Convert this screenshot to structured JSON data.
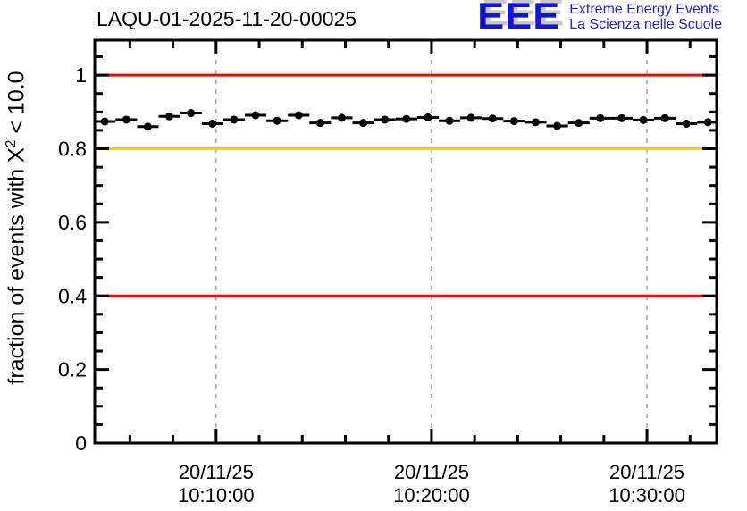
{
  "header": {
    "title": "LAQU-01-2025-11-20-00025"
  },
  "logo": {
    "acronym": "EEE",
    "line1": "Extreme Energy Events",
    "line2": "La Scienza nelle Scuole",
    "text_color": "#2121dd",
    "letters_color": "#1414d6",
    "shadow_color": "#c8c8c8"
  },
  "chart_data": {
    "type": "scatter",
    "title": "LAQU-01-2025-11-20-00025",
    "background": "#ffffff",
    "grid": "vertical-dashed-at-major-ticks",
    "grid_color": "#a6a6a6",
    "ylabel_parts": {
      "before_sup": "fraction of events with X",
      "sup": "2",
      "after_sup": " < 10.0"
    },
    "y_axis": {
      "range": [
        0,
        1.095
      ],
      "major_step": 0.2,
      "minor_step": 0.05,
      "ticks": [
        {
          "value": 0,
          "label": "0"
        },
        {
          "value": 0.2,
          "label": "0.2"
        },
        {
          "value": 0.4,
          "label": "0.4"
        },
        {
          "value": 0.6,
          "label": "0.6"
        },
        {
          "value": 0.8,
          "label": "0.8"
        },
        {
          "value": 1,
          "label": "1"
        }
      ]
    },
    "x_axis": {
      "range": [
        "10:04:22",
        "10:33:14"
      ],
      "minor_step_seconds": 120,
      "major_step_seconds": 600,
      "ticks": [
        {
          "date": "20/11/25",
          "time": "10:10:00"
        },
        {
          "date": "20/11/25",
          "time": "10:20:00"
        },
        {
          "date": "20/11/25",
          "time": "10:30:00"
        }
      ]
    },
    "reference_lines": [
      {
        "value": 1.0,
        "color": "#ff0000"
      },
      {
        "value": 0.8,
        "color": "#ffcc00"
      },
      {
        "value": 0.4,
        "color": "#ff0000"
      }
    ],
    "series": [
      {
        "name": "fraction of events with chi2 < 10",
        "marker": "filled-circle",
        "color": "#000000",
        "x_bin_halfwidth_seconds": 30,
        "points": [
          {
            "time": "10:04:50",
            "value": 0.874
          },
          {
            "time": "10:05:50",
            "value": 0.879
          },
          {
            "time": "10:06:50",
            "value": 0.86
          },
          {
            "time": "10:07:50",
            "value": 0.888
          },
          {
            "time": "10:08:50",
            "value": 0.897
          },
          {
            "time": "10:09:50",
            "value": 0.868
          },
          {
            "time": "10:10:50",
            "value": 0.879
          },
          {
            "time": "10:11:50",
            "value": 0.891
          },
          {
            "time": "10:12:50",
            "value": 0.876
          },
          {
            "time": "10:13:50",
            "value": 0.891
          },
          {
            "time": "10:14:50",
            "value": 0.87
          },
          {
            "time": "10:15:50",
            "value": 0.884
          },
          {
            "time": "10:16:50",
            "value": 0.87
          },
          {
            "time": "10:17:50",
            "value": 0.879
          },
          {
            "time": "10:18:50",
            "value": 0.881
          },
          {
            "time": "10:19:50",
            "value": 0.885
          },
          {
            "time": "10:20:50",
            "value": 0.876
          },
          {
            "time": "10:21:50",
            "value": 0.884
          },
          {
            "time": "10:22:50",
            "value": 0.882
          },
          {
            "time": "10:23:50",
            "value": 0.875
          },
          {
            "time": "10:24:50",
            "value": 0.872
          },
          {
            "time": "10:25:50",
            "value": 0.862
          },
          {
            "time": "10:26:50",
            "value": 0.87
          },
          {
            "time": "10:27:50",
            "value": 0.883
          },
          {
            "time": "10:28:50",
            "value": 0.883
          },
          {
            "time": "10:29:50",
            "value": 0.878
          },
          {
            "time": "10:30:50",
            "value": 0.883
          },
          {
            "time": "10:31:50",
            "value": 0.868
          },
          {
            "time": "10:32:50",
            "value": 0.872
          }
        ]
      }
    ]
  }
}
